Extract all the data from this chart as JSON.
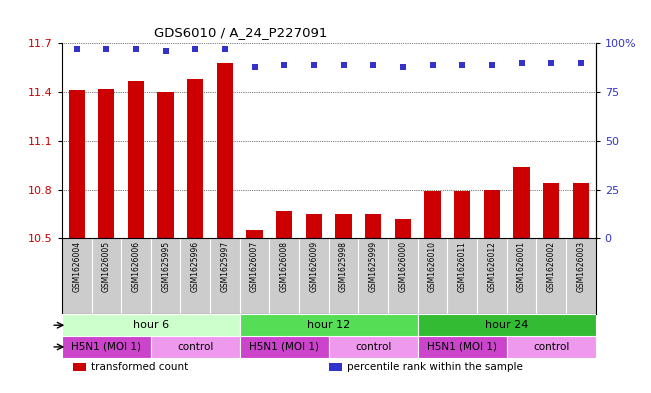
{
  "title": "GDS6010 / A_24_P227091",
  "samples": [
    "GSM1626004",
    "GSM1626005",
    "GSM1626006",
    "GSM1625995",
    "GSM1625996",
    "GSM1625997",
    "GSM1626007",
    "GSM1626008",
    "GSM1626009",
    "GSM1625998",
    "GSM1625999",
    "GSM1626000",
    "GSM1626010",
    "GSM1626011",
    "GSM1626012",
    "GSM1626001",
    "GSM1626002",
    "GSM1626003"
  ],
  "bar_values": [
    11.41,
    11.42,
    11.47,
    11.4,
    11.48,
    11.58,
    10.55,
    10.67,
    10.65,
    10.65,
    10.65,
    10.62,
    10.79,
    10.79,
    10.8,
    10.94,
    10.84,
    10.84
  ],
  "percentile_values": [
    97,
    97,
    97,
    96,
    97,
    97,
    88,
    89,
    89,
    89,
    89,
    88,
    89,
    89,
    89,
    90,
    90,
    90
  ],
  "ylim_left": [
    10.5,
    11.7
  ],
  "ylim_right": [
    0,
    100
  ],
  "yticks_left": [
    10.5,
    10.8,
    11.1,
    11.4,
    11.7
  ],
  "yticks_right": [
    0,
    25,
    50,
    75,
    100
  ],
  "bar_color": "#cc0000",
  "dot_color": "#3333cc",
  "grid_color": "#000000",
  "time_groups": [
    {
      "label": "hour 6",
      "start": 0,
      "end": 6,
      "color_light": "#ccffcc",
      "color_dark": "#55dd55"
    },
    {
      "label": "hour 12",
      "start": 6,
      "end": 12,
      "color_light": "#55dd55",
      "color_dark": "#33bb33"
    },
    {
      "label": "hour 24",
      "start": 12,
      "end": 18,
      "color_light": "#33bb33",
      "color_dark": "#22aa22"
    }
  ],
  "infection_groups": [
    {
      "label": "H5N1 (MOI 1)",
      "start": 0,
      "end": 3,
      "color": "#dd55dd"
    },
    {
      "label": "control",
      "start": 3,
      "end": 6,
      "color": "#ee99ee"
    },
    {
      "label": "H5N1 (MOI 1)",
      "start": 6,
      "end": 9,
      "color": "#dd55dd"
    },
    {
      "label": "control",
      "start": 9,
      "end": 12,
      "color": "#ee99ee"
    },
    {
      "label": "H5N1 (MOI 1)",
      "start": 12,
      "end": 15,
      "color": "#dd55dd"
    },
    {
      "label": "control",
      "start": 15,
      "end": 18,
      "color": "#ee99ee"
    }
  ],
  "legend_items": [
    {
      "label": "transformed count",
      "color": "#cc0000"
    },
    {
      "label": "percentile rank within the sample",
      "color": "#3333cc"
    }
  ],
  "bar_width": 0.55,
  "background_color": "#ffffff",
  "tick_label_color": "#cc0000",
  "right_axis_color": "#3333cc",
  "sample_bg_color": "#cccccc",
  "plot_bg_color": "#ffffff",
  "spine_color": "#000000"
}
